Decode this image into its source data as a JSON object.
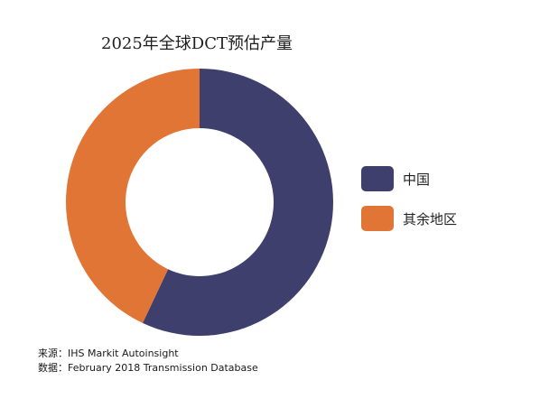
{
  "chart_data": {
    "type": "pie",
    "title": "2025年全球DCT预估产量",
    "categories": [
      "中国",
      "其余地区"
    ],
    "values": [
      57,
      43
    ],
    "colors": [
      "#3f3f6d",
      "#e17535"
    ],
    "legend_position": "right",
    "donut": true
  },
  "footnote": {
    "source": "来源：IHS Markit Autoinsight",
    "data": "数据：February 2018 Transmission Database"
  }
}
